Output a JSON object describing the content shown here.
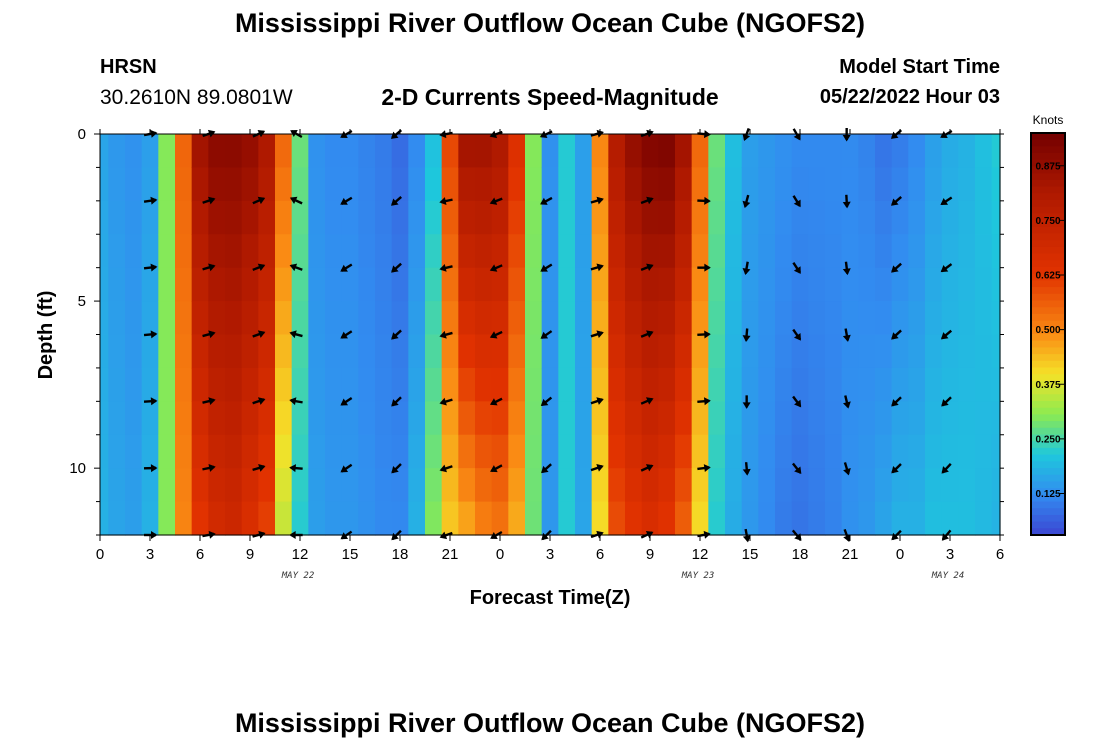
{
  "header": {
    "title": "Mississippi River Outflow Ocean Cube (NGOFS2)",
    "station": "HRSN",
    "coords": "30.2610N  89.0801W",
    "subtitle": "2-D Currents Speed-Magnitude",
    "model_start_label": "Model Start Time",
    "model_start_value": "05/22/2022 Hour 03"
  },
  "footer": {
    "title": "Mississippi River Outflow Ocean Cube (NGOFS2)"
  },
  "chart_data": {
    "type": "heatmap",
    "title": "2-D Currents Speed-Magnitude",
    "xlabel": "Forecast Time(Z)",
    "ylabel": "Depth (ft)",
    "x_range_hours": [
      0,
      54
    ],
    "y_range_ft": [
      0,
      12
    ],
    "x_ticks": [
      {
        "hour": 0,
        "label": "0"
      },
      {
        "hour": 3,
        "label": "3"
      },
      {
        "hour": 6,
        "label": "6"
      },
      {
        "hour": 9,
        "label": "9"
      },
      {
        "hour": 12,
        "label": "12"
      },
      {
        "hour": 15,
        "label": "15"
      },
      {
        "hour": 18,
        "label": "18"
      },
      {
        "hour": 21,
        "label": "21"
      },
      {
        "hour": 24,
        "label": "0"
      },
      {
        "hour": 27,
        "label": "3"
      },
      {
        "hour": 30,
        "label": "6"
      },
      {
        "hour": 33,
        "label": "9"
      },
      {
        "hour": 36,
        "label": "12"
      },
      {
        "hour": 39,
        "label": "15"
      },
      {
        "hour": 42,
        "label": "18"
      },
      {
        "hour": 45,
        "label": "21"
      },
      {
        "hour": 48,
        "label": "0"
      },
      {
        "hour": 51,
        "label": "3"
      },
      {
        "hour": 54,
        "label": "6"
      }
    ],
    "y_ticks": [
      {
        "depth": 0,
        "label": "0"
      },
      {
        "depth": 5,
        "label": "5"
      },
      {
        "depth": 10,
        "label": "10"
      }
    ],
    "date_labels": [
      {
        "hour": 12,
        "label": "MAY 22"
      },
      {
        "hour": 36,
        "label": "MAY 23"
      },
      {
        "hour": 51,
        "label": "MAY 24"
      }
    ],
    "colorbar": {
      "unit": "Knots",
      "range": [
        0.03,
        0.95
      ],
      "ticks": [
        0.125,
        0.25,
        0.375,
        0.5,
        0.625,
        0.75,
        0.875
      ],
      "tick_labels": [
        "0.125",
        "0.250",
        "0.375",
        "0.500",
        "0.625",
        "0.750",
        "0.875"
      ]
    },
    "time_hours": [
      0,
      1,
      2,
      3,
      4,
      5,
      6,
      7,
      8,
      9,
      10,
      11,
      12,
      13,
      14,
      15,
      16,
      17,
      18,
      19,
      20,
      21,
      22,
      23,
      24,
      25,
      26,
      27,
      28,
      29,
      30,
      31,
      32,
      33,
      34,
      35,
      36,
      37,
      38,
      39,
      40,
      41,
      42,
      43,
      44,
      45,
      46,
      47,
      48,
      49,
      50,
      51,
      52,
      53,
      54
    ],
    "surface_speed_knots": [
      0.16,
      0.14,
      0.13,
      0.15,
      0.3,
      0.55,
      0.85,
      0.9,
      0.9,
      0.88,
      0.82,
      0.55,
      0.28,
      0.13,
      0.12,
      0.12,
      0.11,
      0.1,
      0.08,
      0.12,
      0.2,
      0.6,
      0.85,
      0.85,
      0.82,
      0.65,
      0.3,
      0.13,
      0.22,
      0.15,
      0.5,
      0.8,
      0.88,
      0.92,
      0.93,
      0.85,
      0.55,
      0.28,
      0.2,
      0.15,
      0.14,
      0.13,
      0.12,
      0.12,
      0.12,
      0.12,
      0.11,
      0.09,
      0.1,
      0.12,
      0.15,
      0.17,
      0.18,
      0.2,
      0.22
    ],
    "bottom_speed_knots": [
      0.18,
      0.16,
      0.15,
      0.18,
      0.3,
      0.5,
      0.62,
      0.68,
      0.7,
      0.65,
      0.6,
      0.35,
      0.22,
      0.15,
      0.14,
      0.14,
      0.13,
      0.12,
      0.12,
      0.18,
      0.3,
      0.42,
      0.45,
      0.5,
      0.52,
      0.45,
      0.28,
      0.14,
      0.22,
      0.16,
      0.4,
      0.58,
      0.62,
      0.65,
      0.62,
      0.55,
      0.4,
      0.22,
      0.17,
      0.14,
      0.12,
      0.1,
      0.09,
      0.1,
      0.11,
      0.13,
      0.14,
      0.16,
      0.18,
      0.18,
      0.2,
      0.2,
      0.2,
      0.19,
      0.18
    ],
    "vector_times": [
      3,
      6.5,
      9.5,
      11.8,
      14.8,
      17.8,
      20.8,
      23.8,
      26.8,
      29.8,
      32.8,
      36.2,
      38.8,
      41.8,
      44.8,
      47.8,
      50.8
    ],
    "vector_depths_ft": [
      0,
      2,
      4,
      6,
      8,
      10,
      12
    ],
    "vector_direction_deg": [
      80,
      70,
      65,
      300,
      240,
      230,
      260,
      250,
      245,
      75,
      70,
      95,
      200,
      150,
      180,
      230,
      240
    ],
    "vector_direction_deg_deep": [
      90,
      80,
      75,
      270,
      235,
      225,
      250,
      240,
      225,
      70,
      65,
      80,
      170,
      140,
      160,
      225,
      220
    ]
  }
}
